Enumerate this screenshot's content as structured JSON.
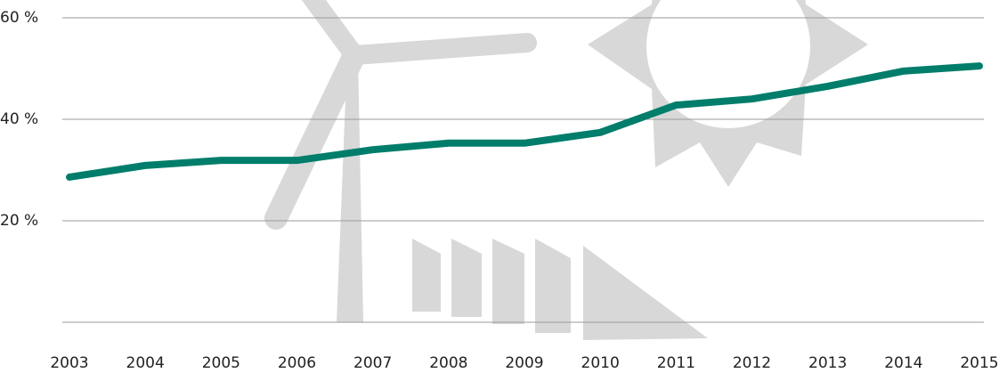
{
  "chart_data": {
    "type": "line",
    "categories": [
      "2003",
      "2004",
      "2005",
      "2006",
      "2007",
      "2008",
      "2009",
      "2010",
      "2011",
      "2012",
      "2013",
      "2014",
      "2015"
    ],
    "series": [
      {
        "color": "#007d6b",
        "values": [
          28.6,
          30.9,
          31.9,
          31.9,
          34.0,
          35.3,
          35.3,
          37.4,
          42.8,
          44.0,
          46.5,
          49.5,
          50.5
        ]
      }
    ],
    "ylim": [
      0,
      60
    ],
    "yticks": [
      {
        "value": 20,
        "label": "20 %"
      },
      {
        "value": 40,
        "label": "40 %"
      },
      {
        "value": 60,
        "label": "60 %"
      }
    ],
    "grid": true
  }
}
